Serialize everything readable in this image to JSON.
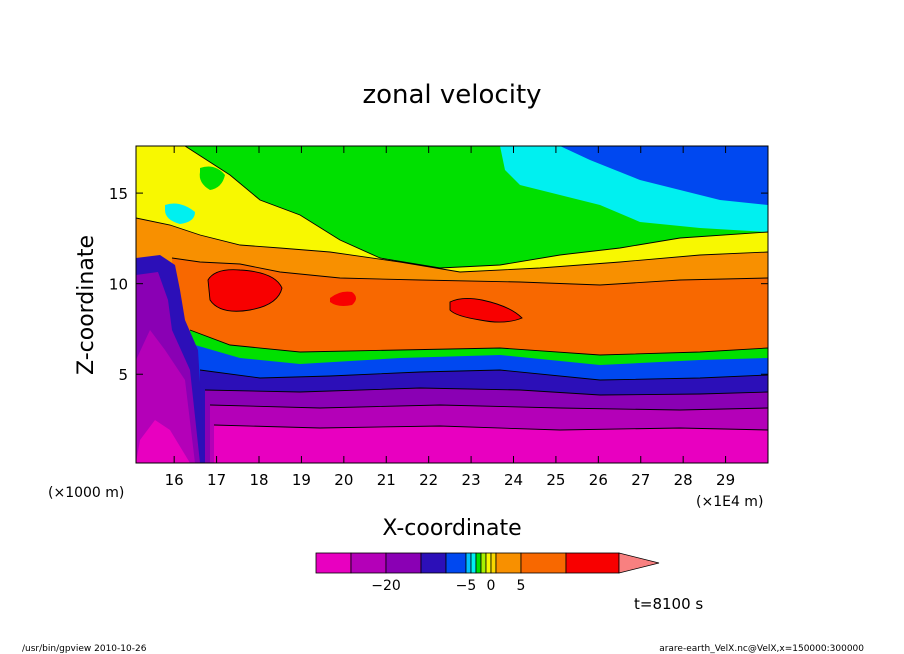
{
  "chart_data": {
    "type": "heatmap",
    "title": "zonal velocity",
    "xlabel": "X-coordinate",
    "ylabel": "Z-coordinate",
    "x_unit_note": "(×1E4 m)",
    "y_unit_note": "(×1000 m)",
    "xlim": [
      15.1,
      30.0
    ],
    "ylim": [
      0.1,
      17.6
    ],
    "x_ticks": [
      16,
      17,
      18,
      19,
      20,
      21,
      22,
      23,
      24,
      25,
      26,
      27,
      28,
      29
    ],
    "y_ticks": [
      5,
      10,
      15
    ],
    "time_label": "t=8100 s",
    "colorbar": {
      "tick_labels": [
        {
          "value": -20,
          "label": "−20"
        },
        {
          "value": -5,
          "label": "−5"
        },
        {
          "value": 0,
          "label": "0"
        },
        {
          "value": 5,
          "label": "5"
        }
      ],
      "bins": [
        {
          "from": -30,
          "to": -25,
          "color": "#e800c0"
        },
        {
          "from": -25,
          "to": -20,
          "color": "#b400b8"
        },
        {
          "from": -20,
          "to": -15,
          "color": "#8a00b4"
        },
        {
          "from": -15,
          "to": -10,
          "color": "#2c0fb8"
        },
        {
          "from": -10,
          "to": -5,
          "color": "#0048f0"
        },
        {
          "from": -5,
          "to": -4,
          "color": "#00c0ff"
        },
        {
          "from": -4,
          "to": -3,
          "color": "#00f0f0"
        },
        {
          "from": -3,
          "to": -2,
          "color": "#00e000"
        },
        {
          "from": -2,
          "to": -1,
          "color": "#a8f000"
        },
        {
          "from": -1,
          "to": 0,
          "color": "#f8f800"
        },
        {
          "from": 0,
          "to": 1,
          "color": "#f8d800"
        },
        {
          "from": 1,
          "to": 5,
          "color": "#f89000"
        },
        {
          "from": 5,
          "to": 10,
          "color": "#f86800"
        },
        {
          "from": 10,
          "to": 15,
          "color": "#f80000"
        }
      ],
      "over_color": "#f88080"
    }
  },
  "footer": {
    "left": "/usr/bin/gpview   2010-10-26",
    "right": "arare-earth_VelX.nc@VelX,x=150000:300000"
  }
}
